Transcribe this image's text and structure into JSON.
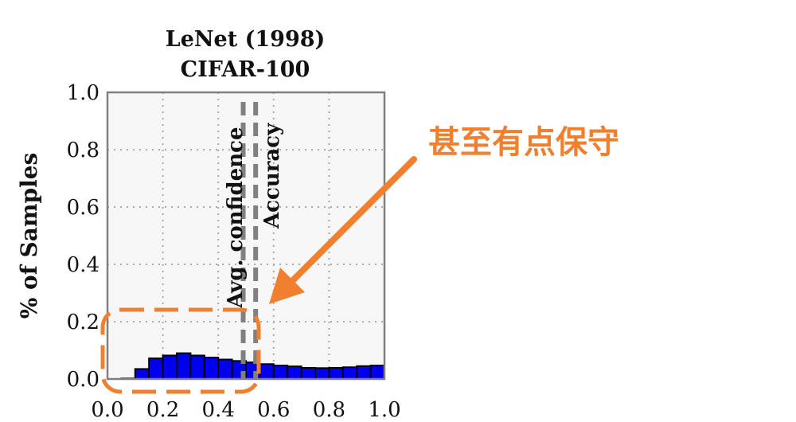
{
  "chart_data": {
    "type": "bar",
    "title": "LeNet (1998)",
    "subtitle": "CIFAR-100",
    "ylabel": "% of Samples",
    "xlabel": "",
    "xlim": [
      0.0,
      1.0
    ],
    "ylim": [
      0.0,
      1.0
    ],
    "grid": true,
    "x_ticks": [
      "0.0",
      "0.2",
      "0.4",
      "0.6",
      "0.8",
      "1.0"
    ],
    "y_ticks": [
      "0.0",
      "0.2",
      "0.4",
      "0.6",
      "0.8",
      "1.0"
    ],
    "bin_width": 0.05,
    "bins": [
      0.0,
      0.05,
      0.1,
      0.15,
      0.2,
      0.25,
      0.3,
      0.35,
      0.4,
      0.45,
      0.5,
      0.55,
      0.6,
      0.65,
      0.7,
      0.75,
      0.8,
      0.85,
      0.9,
      0.95
    ],
    "values": [
      0.0,
      0.002,
      0.035,
      0.072,
      0.082,
      0.09,
      0.082,
      0.075,
      0.068,
      0.063,
      0.058,
      0.052,
      0.047,
      0.044,
      0.039,
      0.038,
      0.039,
      0.041,
      0.045,
      0.047
    ],
    "bar_color": "#0000ee",
    "reference_lines": [
      {
        "label": "Avg. confidence",
        "x": 0.49
      },
      {
        "label": "Accuracy",
        "x": 0.535
      }
    ],
    "reference_line_color": "#808080",
    "annotation": {
      "text": "甚至有点保守",
      "color": "#f08030"
    }
  }
}
